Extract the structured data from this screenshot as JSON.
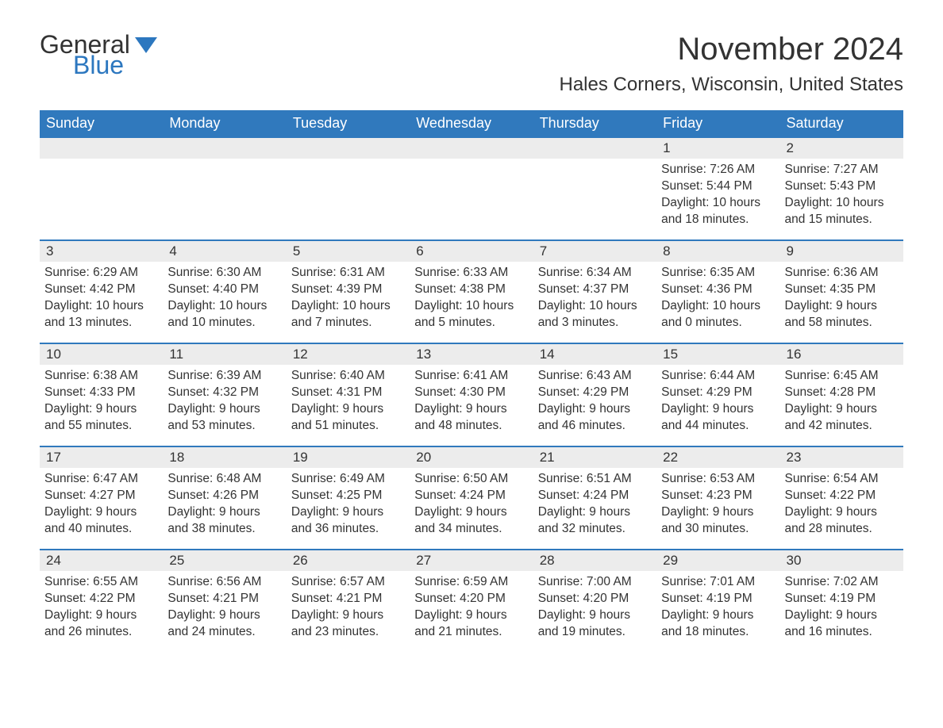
{
  "logo": {
    "word1": "General",
    "word2": "Blue"
  },
  "title": "November 2024",
  "location": "Hales Corners, Wisconsin, United States",
  "colors": {
    "header_bg": "#3079bd",
    "header_text": "#ffffff",
    "daynum_bg": "#ececec",
    "row_border": "#3079bd",
    "body_text": "#333333",
    "logo_blue": "#2c77bf"
  },
  "dayNames": [
    "Sunday",
    "Monday",
    "Tuesday",
    "Wednesday",
    "Thursday",
    "Friday",
    "Saturday"
  ],
  "weeks": [
    [
      {
        "n": "",
        "sunrise": "",
        "sunset": "",
        "daylight": ""
      },
      {
        "n": "",
        "sunrise": "",
        "sunset": "",
        "daylight": ""
      },
      {
        "n": "",
        "sunrise": "",
        "sunset": "",
        "daylight": ""
      },
      {
        "n": "",
        "sunrise": "",
        "sunset": "",
        "daylight": ""
      },
      {
        "n": "",
        "sunrise": "",
        "sunset": "",
        "daylight": ""
      },
      {
        "n": "1",
        "sunrise": "Sunrise: 7:26 AM",
        "sunset": "Sunset: 5:44 PM",
        "daylight": "Daylight: 10 hours and 18 minutes."
      },
      {
        "n": "2",
        "sunrise": "Sunrise: 7:27 AM",
        "sunset": "Sunset: 5:43 PM",
        "daylight": "Daylight: 10 hours and 15 minutes."
      }
    ],
    [
      {
        "n": "3",
        "sunrise": "Sunrise: 6:29 AM",
        "sunset": "Sunset: 4:42 PM",
        "daylight": "Daylight: 10 hours and 13 minutes."
      },
      {
        "n": "4",
        "sunrise": "Sunrise: 6:30 AM",
        "sunset": "Sunset: 4:40 PM",
        "daylight": "Daylight: 10 hours and 10 minutes."
      },
      {
        "n": "5",
        "sunrise": "Sunrise: 6:31 AM",
        "sunset": "Sunset: 4:39 PM",
        "daylight": "Daylight: 10 hours and 7 minutes."
      },
      {
        "n": "6",
        "sunrise": "Sunrise: 6:33 AM",
        "sunset": "Sunset: 4:38 PM",
        "daylight": "Daylight: 10 hours and 5 minutes."
      },
      {
        "n": "7",
        "sunrise": "Sunrise: 6:34 AM",
        "sunset": "Sunset: 4:37 PM",
        "daylight": "Daylight: 10 hours and 3 minutes."
      },
      {
        "n": "8",
        "sunrise": "Sunrise: 6:35 AM",
        "sunset": "Sunset: 4:36 PM",
        "daylight": "Daylight: 10 hours and 0 minutes."
      },
      {
        "n": "9",
        "sunrise": "Sunrise: 6:36 AM",
        "sunset": "Sunset: 4:35 PM",
        "daylight": "Daylight: 9 hours and 58 minutes."
      }
    ],
    [
      {
        "n": "10",
        "sunrise": "Sunrise: 6:38 AM",
        "sunset": "Sunset: 4:33 PM",
        "daylight": "Daylight: 9 hours and 55 minutes."
      },
      {
        "n": "11",
        "sunrise": "Sunrise: 6:39 AM",
        "sunset": "Sunset: 4:32 PM",
        "daylight": "Daylight: 9 hours and 53 minutes."
      },
      {
        "n": "12",
        "sunrise": "Sunrise: 6:40 AM",
        "sunset": "Sunset: 4:31 PM",
        "daylight": "Daylight: 9 hours and 51 minutes."
      },
      {
        "n": "13",
        "sunrise": "Sunrise: 6:41 AM",
        "sunset": "Sunset: 4:30 PM",
        "daylight": "Daylight: 9 hours and 48 minutes."
      },
      {
        "n": "14",
        "sunrise": "Sunrise: 6:43 AM",
        "sunset": "Sunset: 4:29 PM",
        "daylight": "Daylight: 9 hours and 46 minutes."
      },
      {
        "n": "15",
        "sunrise": "Sunrise: 6:44 AM",
        "sunset": "Sunset: 4:29 PM",
        "daylight": "Daylight: 9 hours and 44 minutes."
      },
      {
        "n": "16",
        "sunrise": "Sunrise: 6:45 AM",
        "sunset": "Sunset: 4:28 PM",
        "daylight": "Daylight: 9 hours and 42 minutes."
      }
    ],
    [
      {
        "n": "17",
        "sunrise": "Sunrise: 6:47 AM",
        "sunset": "Sunset: 4:27 PM",
        "daylight": "Daylight: 9 hours and 40 minutes."
      },
      {
        "n": "18",
        "sunrise": "Sunrise: 6:48 AM",
        "sunset": "Sunset: 4:26 PM",
        "daylight": "Daylight: 9 hours and 38 minutes."
      },
      {
        "n": "19",
        "sunrise": "Sunrise: 6:49 AM",
        "sunset": "Sunset: 4:25 PM",
        "daylight": "Daylight: 9 hours and 36 minutes."
      },
      {
        "n": "20",
        "sunrise": "Sunrise: 6:50 AM",
        "sunset": "Sunset: 4:24 PM",
        "daylight": "Daylight: 9 hours and 34 minutes."
      },
      {
        "n": "21",
        "sunrise": "Sunrise: 6:51 AM",
        "sunset": "Sunset: 4:24 PM",
        "daylight": "Daylight: 9 hours and 32 minutes."
      },
      {
        "n": "22",
        "sunrise": "Sunrise: 6:53 AM",
        "sunset": "Sunset: 4:23 PM",
        "daylight": "Daylight: 9 hours and 30 minutes."
      },
      {
        "n": "23",
        "sunrise": "Sunrise: 6:54 AM",
        "sunset": "Sunset: 4:22 PM",
        "daylight": "Daylight: 9 hours and 28 minutes."
      }
    ],
    [
      {
        "n": "24",
        "sunrise": "Sunrise: 6:55 AM",
        "sunset": "Sunset: 4:22 PM",
        "daylight": "Daylight: 9 hours and 26 minutes."
      },
      {
        "n": "25",
        "sunrise": "Sunrise: 6:56 AM",
        "sunset": "Sunset: 4:21 PM",
        "daylight": "Daylight: 9 hours and 24 minutes."
      },
      {
        "n": "26",
        "sunrise": "Sunrise: 6:57 AM",
        "sunset": "Sunset: 4:21 PM",
        "daylight": "Daylight: 9 hours and 23 minutes."
      },
      {
        "n": "27",
        "sunrise": "Sunrise: 6:59 AM",
        "sunset": "Sunset: 4:20 PM",
        "daylight": "Daylight: 9 hours and 21 minutes."
      },
      {
        "n": "28",
        "sunrise": "Sunrise: 7:00 AM",
        "sunset": "Sunset: 4:20 PM",
        "daylight": "Daylight: 9 hours and 19 minutes."
      },
      {
        "n": "29",
        "sunrise": "Sunrise: 7:01 AM",
        "sunset": "Sunset: 4:19 PM",
        "daylight": "Daylight: 9 hours and 18 minutes."
      },
      {
        "n": "30",
        "sunrise": "Sunrise: 7:02 AM",
        "sunset": "Sunset: 4:19 PM",
        "daylight": "Daylight: 9 hours and 16 minutes."
      }
    ]
  ]
}
